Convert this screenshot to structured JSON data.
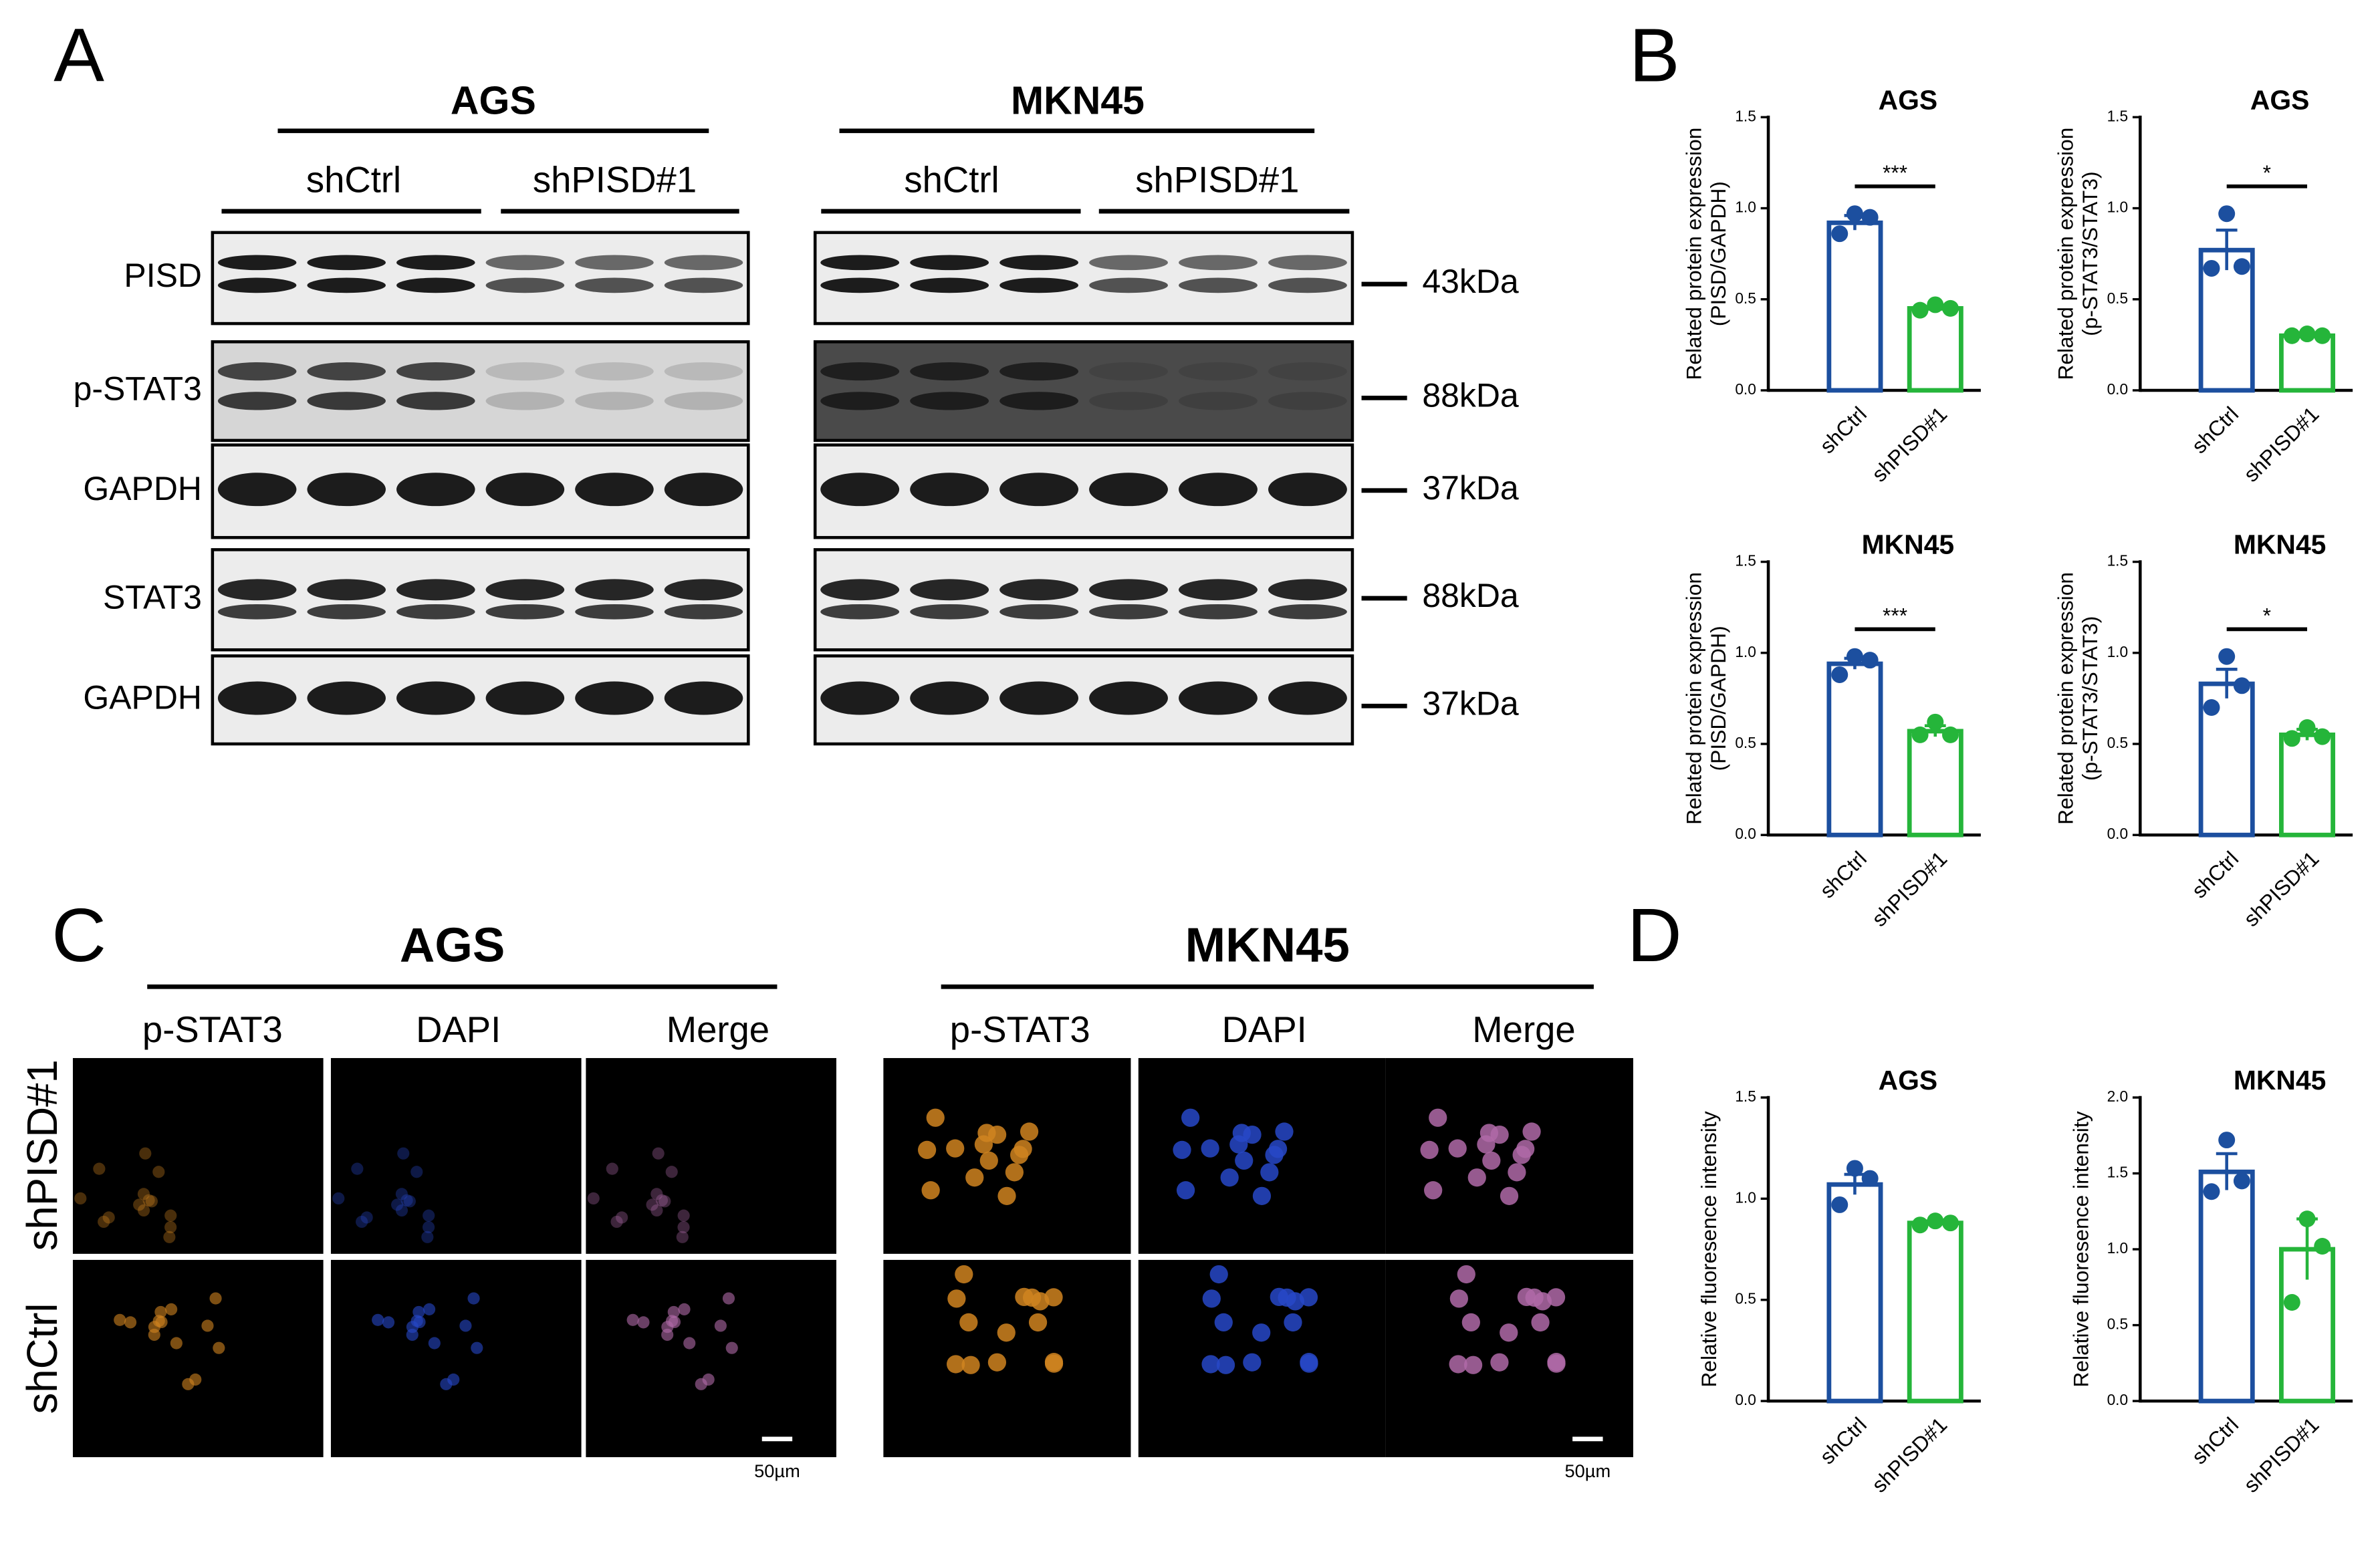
{
  "panels": {
    "A": {
      "letter": "A",
      "cell_lines": [
        "AGS",
        "MKN45"
      ],
      "groups": [
        "shCtrl",
        "shPISD#1"
      ],
      "proteins": [
        "PISD",
        "p-STAT3",
        "GAPDH",
        "STAT3",
        "GAPDH"
      ],
      "sizes": [
        "43kDa",
        "88kDa",
        "37kDa",
        "88kDa",
        "37kDa"
      ]
    },
    "B": {
      "letter": "B"
    },
    "C": {
      "letter": "C",
      "cell_lines": [
        "AGS",
        "MKN45"
      ],
      "channels": [
        "p-STAT3",
        "DAPI",
        "Merge"
      ],
      "groups": [
        "shPISD#1",
        "shCtrl"
      ],
      "scale_bar": "50µm"
    },
    "D": {
      "letter": "D"
    }
  },
  "chart_data": [
    {
      "type": "bar",
      "title": "AGS",
      "ylabel": [
        "Related protein expression",
        "(PISD/GAPDH)"
      ],
      "categories": [
        "shCtrl",
        "shPISD#1"
      ],
      "values": [
        0.92,
        0.45
      ],
      "errors": [
        0.04,
        0.01
      ],
      "points": [
        [
          0.97,
          0.95,
          0.86
        ],
        [
          0.47,
          0.45,
          0.44
        ]
      ],
      "colors": [
        "#1c4f9f",
        "#25b53a"
      ],
      "significance": "***",
      "ylim": [
        0,
        1.5
      ],
      "yticks": [
        {
          "value": 0,
          "label": "0.0"
        },
        {
          "value": 0.5,
          "label": "0.5"
        },
        {
          "value": 1,
          "label": "1.0"
        },
        {
          "value": 1.5,
          "label": "1.5"
        }
      ]
    },
    {
      "type": "bar",
      "title": "AGS",
      "ylabel": [
        "Related protein expression",
        "(p-STAT3/STAT3)"
      ],
      "categories": [
        "shCtrl",
        "shPISD#1"
      ],
      "values": [
        0.77,
        0.3
      ],
      "errors": [
        0.11,
        0.01
      ],
      "points": [
        [
          0.97,
          0.68,
          0.67
        ],
        [
          0.31,
          0.3,
          0.3
        ]
      ],
      "colors": [
        "#1c4f9f",
        "#25b53a"
      ],
      "significance": "*",
      "ylim": [
        0,
        1.5
      ],
      "yticks": [
        {
          "value": 0,
          "label": "0.0"
        },
        {
          "value": 0.5,
          "label": "0.5"
        },
        {
          "value": 1,
          "label": "1.0"
        },
        {
          "value": 1.5,
          "label": "1.5"
        }
      ]
    },
    {
      "type": "bar",
      "title": "MKN45",
      "ylabel": [
        "Related protein expression",
        "(PISD/GAPDH)"
      ],
      "categories": [
        "shCtrl",
        "shPISD#1"
      ],
      "values": [
        0.94,
        0.57
      ],
      "errors": [
        0.03,
        0.03
      ],
      "points": [
        [
          0.98,
          0.96,
          0.88
        ],
        [
          0.62,
          0.55,
          0.55
        ]
      ],
      "colors": [
        "#1c4f9f",
        "#25b53a"
      ],
      "significance": "***",
      "ylim": [
        0,
        1.5
      ],
      "yticks": [
        {
          "value": 0,
          "label": "0.0"
        },
        {
          "value": 0.5,
          "label": "0.5"
        },
        {
          "value": 1,
          "label": "1.0"
        },
        {
          "value": 1.5,
          "label": "1.5"
        }
      ]
    },
    {
      "type": "bar",
      "title": "MKN45",
      "ylabel": [
        "Related protein expression",
        "(p-STAT3/STAT3)"
      ],
      "categories": [
        "shCtrl",
        "shPISD#1"
      ],
      "values": [
        0.83,
        0.55
      ],
      "errors": [
        0.08,
        0.03
      ],
      "points": [
        [
          0.98,
          0.82,
          0.7
        ],
        [
          0.59,
          0.54,
          0.53
        ]
      ],
      "colors": [
        "#1c4f9f",
        "#25b53a"
      ],
      "significance": "*",
      "ylim": [
        0,
        1.5
      ],
      "yticks": [
        {
          "value": 0,
          "label": "0.0"
        },
        {
          "value": 0.5,
          "label": "0.5"
        },
        {
          "value": 1,
          "label": "1.0"
        },
        {
          "value": 1.5,
          "label": "1.5"
        }
      ]
    },
    {
      "type": "bar",
      "title": "AGS",
      "ylabel": [
        "Relative fluoresence intensity"
      ],
      "categories": [
        "shCtrl",
        "shPISD#1"
      ],
      "values": [
        1.07,
        0.88
      ],
      "errors": [
        0.05,
        0.01
      ],
      "points": [
        [
          1.15,
          1.1,
          0.97
        ],
        [
          0.89,
          0.88,
          0.87
        ]
      ],
      "colors": [
        "#1c4f9f",
        "#25b53a"
      ],
      "ylim": [
        0,
        1.5
      ],
      "yticks": [
        {
          "value": 0,
          "label": "0.0"
        },
        {
          "value": 0.5,
          "label": "0.5"
        },
        {
          "value": 1,
          "label": "1.0"
        },
        {
          "value": 1.5,
          "label": "1.5"
        }
      ]
    },
    {
      "type": "bar",
      "title": "MKN45",
      "ylabel": [
        "Relative fluoresence intensity"
      ],
      "categories": [
        "shCtrl",
        "shPISD#1"
      ],
      "values": [
        1.51,
        1.0
      ],
      "errors": [
        0.12,
        0.2
      ],
      "points": [
        [
          1.72,
          1.45,
          1.38
        ],
        [
          1.2,
          1.02,
          0.65
        ]
      ],
      "colors": [
        "#1c4f9f",
        "#25b53a"
      ],
      "ylim": [
        0,
        2
      ],
      "yticks": [
        {
          "value": 0,
          "label": "0.0"
        },
        {
          "value": 0.5,
          "label": "0.5"
        },
        {
          "value": 1,
          "label": "1.0"
        },
        {
          "value": 1.5,
          "label": "1.5"
        },
        {
          "value": 2,
          "label": "2.0"
        }
      ]
    }
  ]
}
